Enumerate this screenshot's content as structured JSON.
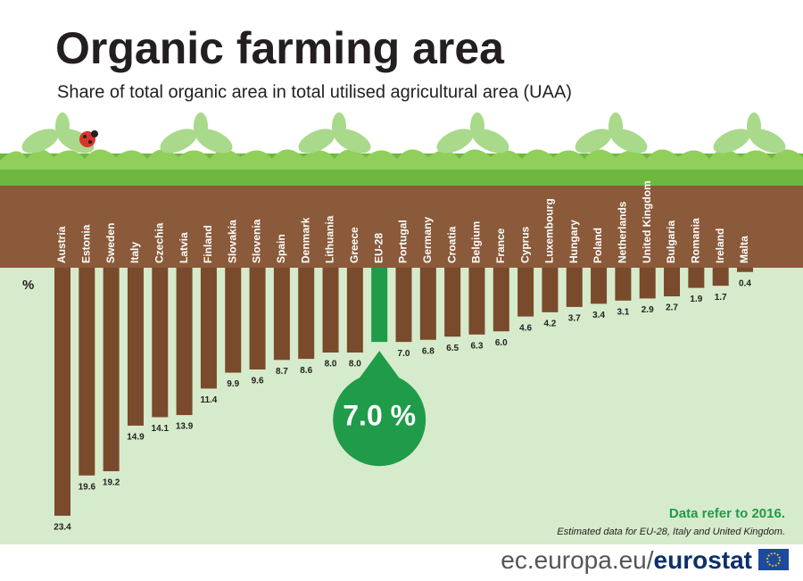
{
  "chart_data": {
    "type": "bar",
    "title": "Organic farming area",
    "subtitle": "Share of total organic area in total utilised agricultural area (UAA)",
    "unit_label": "%",
    "categories": [
      "Austria",
      "Estonia",
      "Sweden",
      "Italy",
      "Czechia",
      "Latvia",
      "Finland",
      "Slovakia",
      "Slovenia",
      "Spain",
      "Denmark",
      "Lithuania",
      "Greece",
      "EU-28",
      "Portugal",
      "Germany",
      "Croatia",
      "Belgium",
      "France",
      "Cyprus",
      "Luxembourg",
      "Hungary",
      "Poland",
      "Netherlands",
      "United Kingdom",
      "Bulgaria",
      "Romania",
      "Ireland",
      "Malta"
    ],
    "values": [
      23.4,
      19.6,
      19.2,
      14.9,
      14.1,
      13.9,
      11.4,
      9.9,
      9.6,
      8.7,
      8.6,
      8.0,
      8.0,
      7.0,
      7.0,
      6.8,
      6.5,
      6.3,
      6.0,
      4.6,
      4.2,
      3.7,
      3.4,
      3.1,
      2.9,
      2.7,
      1.9,
      1.7,
      0.4
    ],
    "value_labels": [
      "23.4",
      "19.6",
      "19.2",
      "14.9",
      "14.1",
      "13.9",
      "11.4",
      "9.9",
      "9.6",
      "8.7",
      "8.6",
      "8.0",
      "8.0",
      "7.0 %",
      "7.0",
      "6.8",
      "6.5",
      "6.3",
      "6.0",
      "4.6",
      "4.2",
      "3.7",
      "3.4",
      "3.1",
      "2.9",
      "2.7",
      "1.9",
      "1.7",
      "0.4"
    ],
    "color": "#7a4a2c",
    "highlight": "EU-28",
    "highlight_color": "#1f9b49",
    "ylim": [
      0,
      24
    ],
    "note": "Data refer to 2016.",
    "footnote": "Estimated data for EU-28, Italy and United Kingdom."
  },
  "footer": {
    "site": "ec.europa.eu/",
    "brand": "eurostat"
  }
}
